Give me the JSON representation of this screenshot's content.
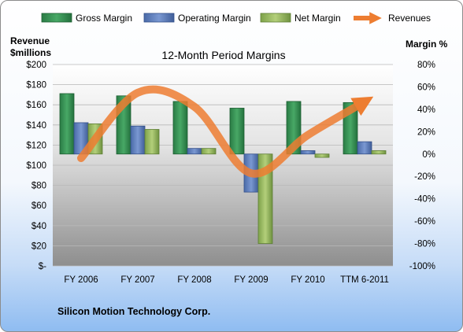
{
  "chart_data": {
    "type": "bar",
    "title": "12-Month Period Margins",
    "categories": [
      "FY 2006",
      "FY 2007",
      "FY 2008",
      "FY 2009",
      "FY 2010",
      "TTM 6-2011"
    ],
    "series": [
      {
        "name": "Gross Margin",
        "axis": "right",
        "values": [
          54,
          52,
          47,
          41,
          47,
          46
        ],
        "color": "#2e8b4e"
      },
      {
        "name": "Operating Margin",
        "axis": "right",
        "values": [
          28,
          25,
          5,
          -34,
          3,
          11
        ],
        "color": "#5f7fbf"
      },
      {
        "name": "Net Margin",
        "axis": "right",
        "values": [
          27,
          22,
          5,
          -80,
          -3,
          3
        ],
        "color": "#9bbb59"
      },
      {
        "name": "Revenues",
        "type": "line",
        "axis": "left",
        "values": [
          107,
          172,
          158,
          92,
          130,
          163
        ],
        "color": "#ed7d31"
      }
    ],
    "y_left": {
      "label_line1": "Revenue",
      "label_line2": "$millions",
      "ticks": [
        "$-",
        "$20",
        "$40",
        "$60",
        "$80",
        "$100",
        "$120",
        "$140",
        "$160",
        "$180",
        "$200"
      ],
      "range": [
        0,
        200
      ]
    },
    "y_right": {
      "label": "Margin %",
      "ticks": [
        "-100%",
        "-80%",
        "-60%",
        "-40%",
        "-20%",
        "0%",
        "20%",
        "40%",
        "60%",
        "80%"
      ],
      "range": [
        -100,
        80
      ]
    },
    "legend_position": "top",
    "grid": true
  },
  "company": "Silicon Motion Technology Corp."
}
